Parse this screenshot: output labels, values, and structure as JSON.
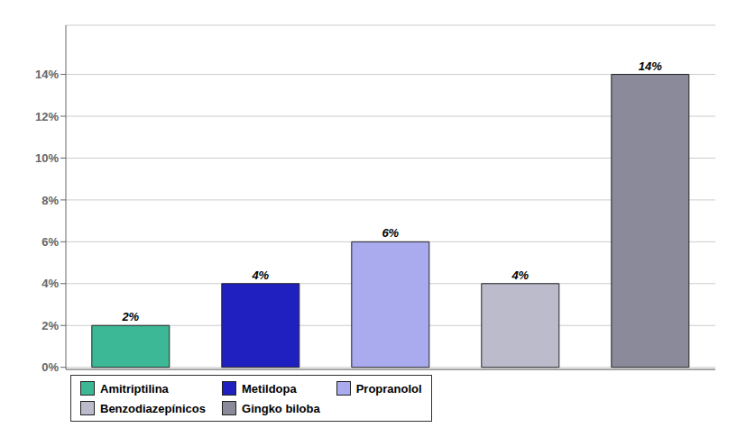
{
  "chart_data": {
    "type": "bar",
    "categories": [
      "Amitriptilina",
      "Metildopa",
      "Propranolol",
      "Benzodiazepínicos",
      "Gingko biloba"
    ],
    "values": [
      2,
      4,
      6,
      4,
      14
    ],
    "value_labels": [
      "2%",
      "4%",
      "6%",
      "4%",
      "14%"
    ],
    "colors": [
      "#3CB896",
      "#2020C0",
      "#AAAAEE",
      "#BBBBCC",
      "#8A8A9A"
    ],
    "ylim": [
      -0.1,
      16.35
    ],
    "yticks": [
      {
        "value": 0,
        "label": "0%"
      },
      {
        "value": 2,
        "label": "2%"
      },
      {
        "value": 4,
        "label": "4%"
      },
      {
        "value": 6,
        "label": "6%"
      },
      {
        "value": 8,
        "label": "8%"
      },
      {
        "value": 10,
        "label": "10%"
      },
      {
        "value": 12,
        "label": "12%"
      },
      {
        "value": 14,
        "label": "14%"
      }
    ],
    "grid": true,
    "data_labels": true,
    "tick_labels": "y",
    "legend": "bottom"
  }
}
